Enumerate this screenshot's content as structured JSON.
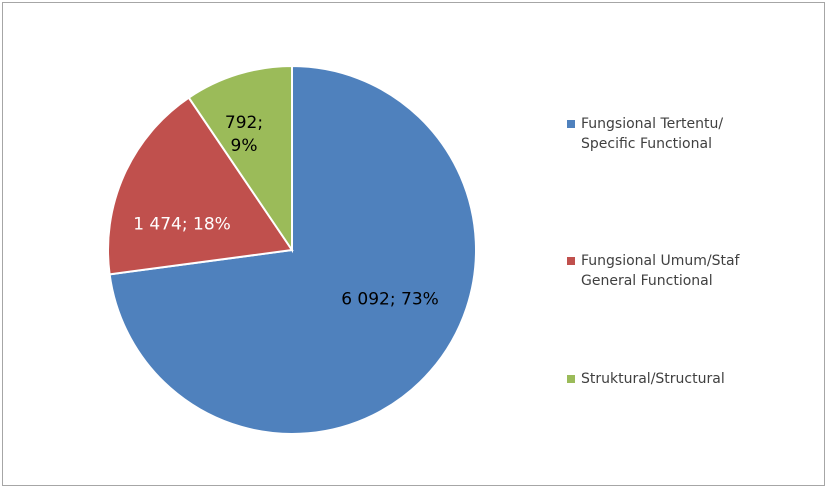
{
  "chart_data": {
    "type": "pie",
    "categories": [
      "Fungsional Tertentu/\nSpecific Functional",
      "Fungsional Umum/Staf\nGeneral Functional",
      "Struktural/Structural"
    ],
    "values": [
      6092,
      1474,
      792
    ],
    "value_labels": [
      "6 092; 73%",
      "1 474; 18%",
      "792; 9%"
    ],
    "colors": [
      "#4f81bd",
      "#c0504d",
      "#9bbb59"
    ]
  }
}
